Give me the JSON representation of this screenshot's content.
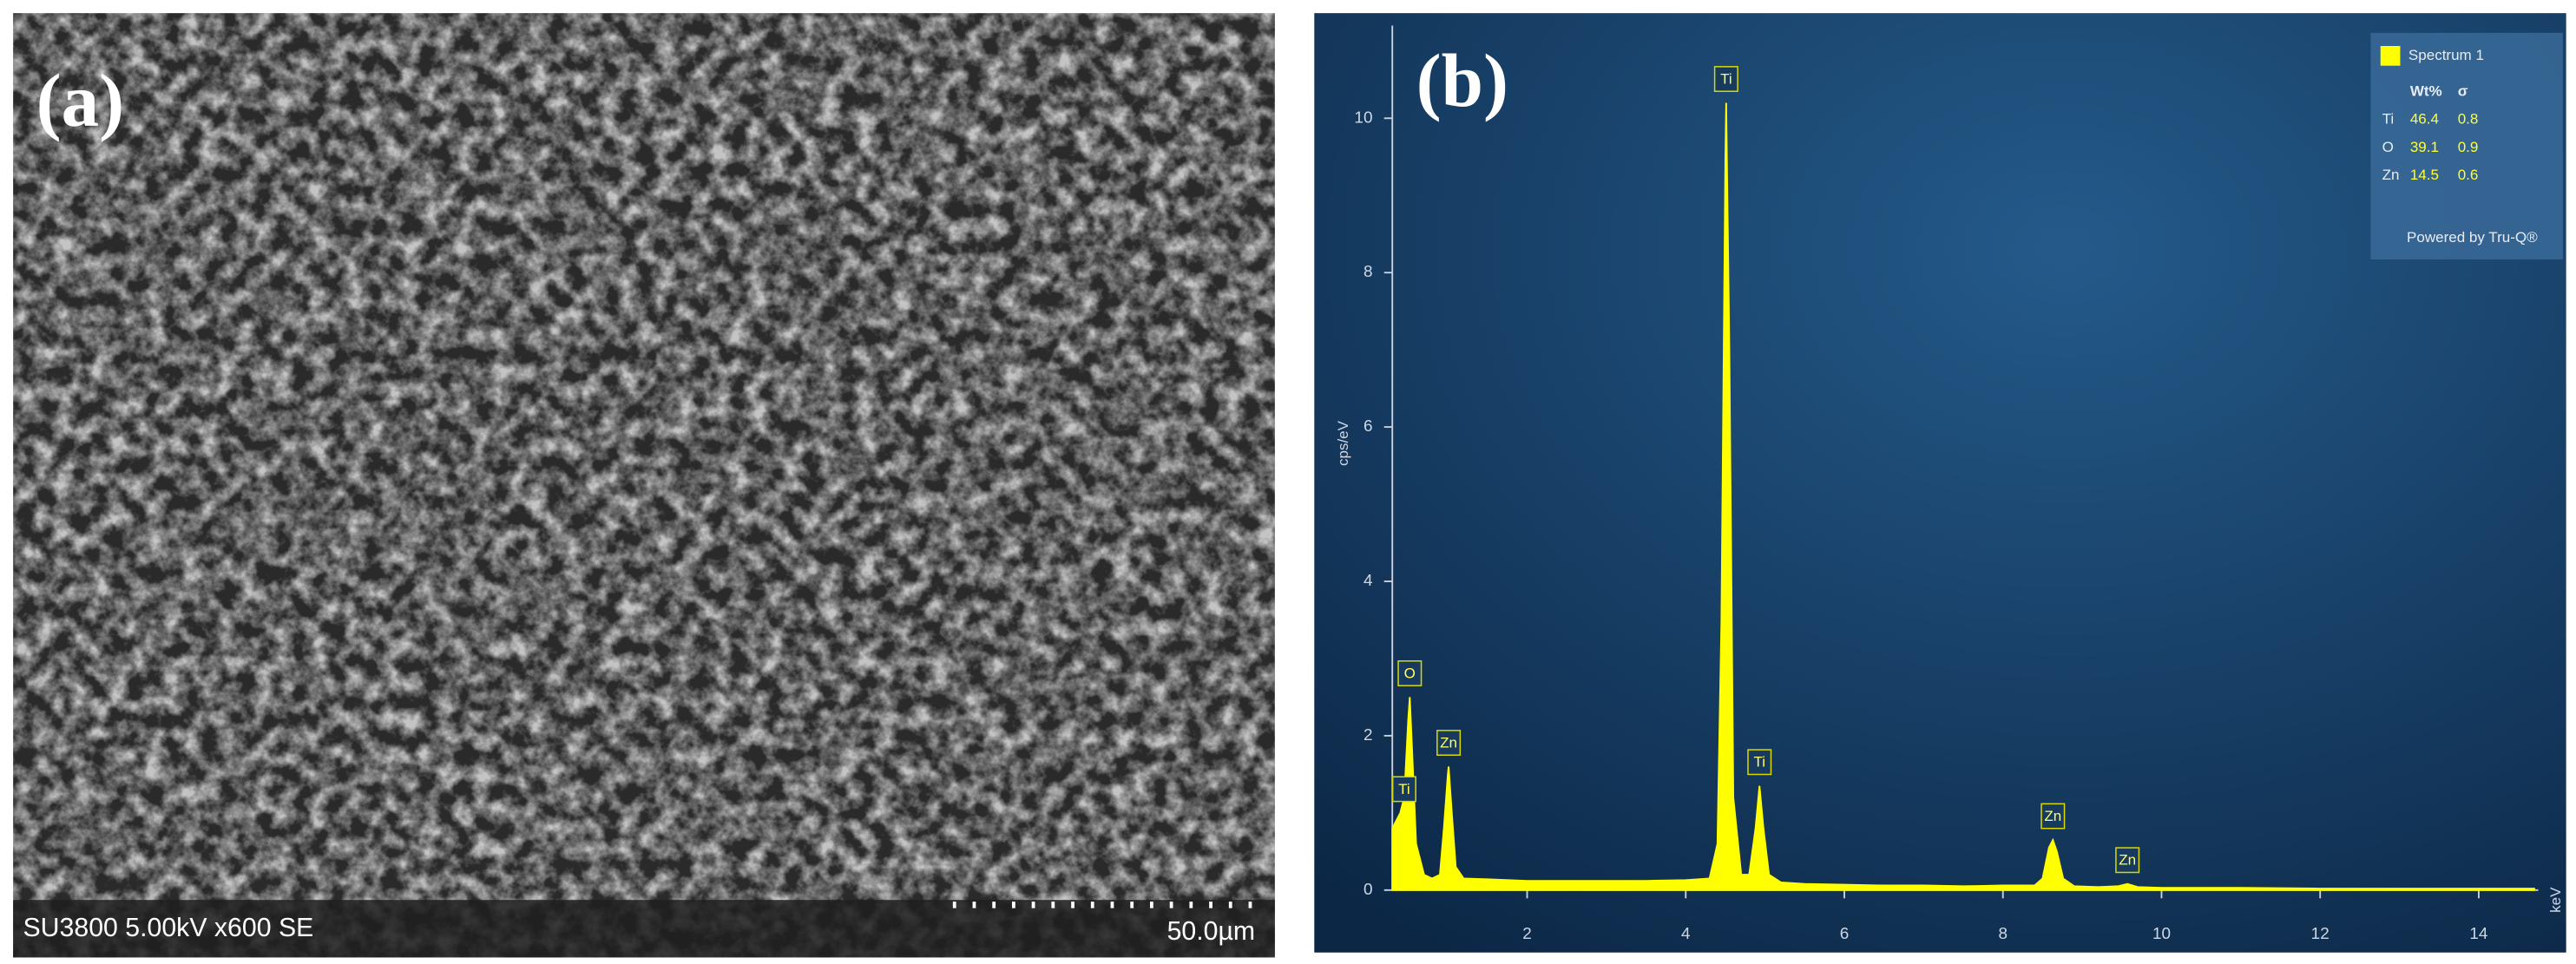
{
  "panel_a": {
    "label": "(a)",
    "info": "SU3800 5.00kV x600 SE",
    "scale": "50.0µm"
  },
  "chart_data": {
    "type": "area",
    "panel_label": "(b)",
    "y_label": "cps/eV",
    "x_label": "keV",
    "xlim": [
      0.3,
      14.75
    ],
    "ylim": [
      0,
      11.2
    ],
    "xticks": [
      2,
      4,
      6,
      8,
      10,
      12,
      14
    ],
    "yticks": [
      0,
      2,
      4,
      6,
      8,
      10
    ],
    "x": [
      0.3,
      0.4,
      0.45,
      0.5,
      0.52,
      0.55,
      0.6,
      0.7,
      0.8,
      0.9,
      0.95,
      1.0,
      1.01,
      1.05,
      1.1,
      1.2,
      1.5,
      2.0,
      2.5,
      3.0,
      3.5,
      4.0,
      4.3,
      4.4,
      4.45,
      4.5,
      4.51,
      4.55,
      4.6,
      4.7,
      4.8,
      4.88,
      4.93,
      4.98,
      5.05,
      5.2,
      5.5,
      6.0,
      6.5,
      7.0,
      7.5,
      8.0,
      8.4,
      8.5,
      8.58,
      8.63,
      8.68,
      8.76,
      8.9,
      9.2,
      9.45,
      9.57,
      9.7,
      10,
      11,
      12,
      13,
      14,
      14.7
    ],
    "series": [
      {
        "name": "Spectrum 1",
        "color": "#ffff00",
        "values": [
          0.8,
          1.0,
          1.2,
          2.2,
          2.5,
          1.8,
          0.6,
          0.2,
          0.15,
          0.2,
          0.8,
          1.5,
          1.6,
          1.0,
          0.3,
          0.15,
          0.14,
          0.12,
          0.12,
          0.12,
          0.12,
          0.13,
          0.15,
          0.6,
          3.5,
          9.5,
          10.2,
          7.0,
          1.2,
          0.2,
          0.2,
          0.8,
          1.35,
          0.8,
          0.2,
          0.1,
          0.08,
          0.07,
          0.06,
          0.06,
          0.05,
          0.06,
          0.06,
          0.15,
          0.55,
          0.65,
          0.5,
          0.15,
          0.05,
          0.04,
          0.05,
          0.08,
          0.04,
          0.03,
          0.03,
          0.02,
          0.02,
          0.02,
          0.02
        ]
      }
    ],
    "annotations": [
      {
        "text": "Ti",
        "x": 0.45,
        "y": 1.0
      },
      {
        "text": "O",
        "x": 0.52,
        "y": 2.5
      },
      {
        "text": "Zn",
        "x": 1.01,
        "y": 1.6
      },
      {
        "text": "Ti",
        "x": 4.51,
        "y": 10.2
      },
      {
        "text": "Ti",
        "x": 4.93,
        "y": 1.35
      },
      {
        "text": "Zn",
        "x": 8.63,
        "y": 0.65
      },
      {
        "text": "Zn",
        "x": 9.57,
        "y": 0.08
      }
    ],
    "legend_table": {
      "columns": [
        "Wt%",
        "σ"
      ],
      "rows": [
        {
          "element": "Ti",
          "values": [
            46.4,
            0.8
          ]
        },
        {
          "element": "O",
          "values": [
            39.1,
            0.9
          ]
        },
        {
          "element": "Zn",
          "values": [
            14.5,
            0.6
          ]
        }
      ],
      "footer": "Powered by Tru-Q®"
    }
  }
}
